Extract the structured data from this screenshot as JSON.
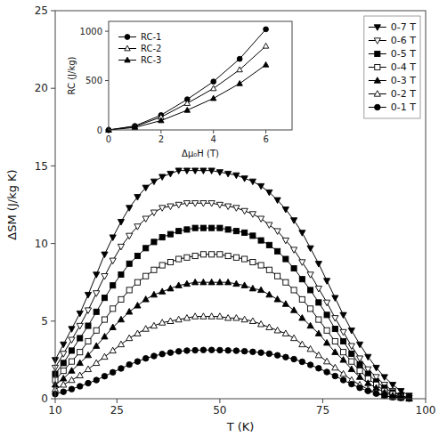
{
  "chart_data": [
    {
      "type": "line",
      "x_label": "T (K)",
      "y_label": "ΔSM (J/kg K)",
      "xlim": [
        10,
        100
      ],
      "ylim": [
        0,
        25
      ],
      "xticks": [
        10,
        25,
        50,
        75,
        100
      ],
      "yticks": [
        0,
        5,
        10,
        15,
        20,
        25
      ],
      "grid": false,
      "legend": "upper right",
      "color": "black",
      "x": [
        10,
        12,
        14,
        16,
        18,
        20,
        22,
        24,
        26,
        28,
        30,
        32,
        34,
        36,
        38,
        40,
        42,
        44,
        46,
        48,
        50,
        52,
        54,
        56,
        58,
        60,
        62,
        64,
        66,
        68,
        70,
        72,
        74,
        76,
        78,
        80,
        82,
        84,
        86,
        88,
        90,
        92,
        94,
        96
      ],
      "series": [
        {
          "name": "0-7 T",
          "marker": "triangle-down-filled",
          "values": [
            2.5,
            3.5,
            4.5,
            5.5,
            6.7,
            8.0,
            9.3,
            10.4,
            11.4,
            12.3,
            13.0,
            13.6,
            14.0,
            14.3,
            14.5,
            14.7,
            14.7,
            14.7,
            14.7,
            14.7,
            14.6,
            14.5,
            14.4,
            14.2,
            14.0,
            13.7,
            13.3,
            12.8,
            12.2,
            11.5,
            10.7,
            9.7,
            8.7,
            7.6,
            6.5,
            5.4,
            4.4,
            3.5,
            2.7,
            2.0,
            1.4,
            0.9,
            0.5,
            0.2
          ]
        },
        {
          "name": "0-6 T",
          "marker": "triangle-down-open",
          "values": [
            2.0,
            2.9,
            3.8,
            4.7,
            5.7,
            6.8,
            7.9,
            8.9,
            9.8,
            10.5,
            11.1,
            11.6,
            12.0,
            12.3,
            12.4,
            12.5,
            12.6,
            12.6,
            12.6,
            12.6,
            12.5,
            12.4,
            12.3,
            12.1,
            11.9,
            11.6,
            11.2,
            10.8,
            10.2,
            9.6,
            8.8,
            8.0,
            7.1,
            6.2,
            5.2,
            4.3,
            3.4,
            2.6,
            1.9,
            1.4,
            0.9,
            0.5,
            0.2,
            0.05
          ]
        },
        {
          "name": "0-5 T",
          "marker": "square-filled",
          "values": [
            1.6,
            2.3,
            3.1,
            3.9,
            4.7,
            5.6,
            6.5,
            7.3,
            8.0,
            8.7,
            9.2,
            9.7,
            10.1,
            10.4,
            10.6,
            10.8,
            10.9,
            11.0,
            11.0,
            11.0,
            11.0,
            10.9,
            10.8,
            10.7,
            10.5,
            10.2,
            9.9,
            9.5,
            9.0,
            8.4,
            7.7,
            7.0,
            6.2,
            5.4,
            4.5,
            3.7,
            2.9,
            2.2,
            1.6,
            1.1,
            0.7,
            0.4,
            0.2,
            0.05
          ]
        },
        {
          "name": "0-4 T",
          "marker": "square-open",
          "values": [
            1.2,
            1.8,
            2.4,
            3.0,
            3.7,
            4.4,
            5.1,
            5.8,
            6.4,
            7.0,
            7.5,
            7.9,
            8.3,
            8.6,
            8.8,
            9.0,
            9.1,
            9.2,
            9.3,
            9.3,
            9.3,
            9.2,
            9.1,
            9.0,
            8.8,
            8.6,
            8.3,
            7.9,
            7.5,
            7.0,
            6.4,
            5.8,
            5.1,
            4.4,
            3.7,
            3.0,
            2.4,
            1.8,
            1.3,
            0.9,
            0.5,
            0.3,
            0.1,
            0.02
          ]
        },
        {
          "name": "0-3 T",
          "marker": "triangle-up-filled",
          "values": [
            0.9,
            1.3,
            1.8,
            2.3,
            2.8,
            3.4,
            4.0,
            4.6,
            5.1,
            5.6,
            6.0,
            6.4,
            6.7,
            6.9,
            7.1,
            7.3,
            7.4,
            7.5,
            7.5,
            7.5,
            7.5,
            7.5,
            7.4,
            7.3,
            7.1,
            7.0,
            6.7,
            6.4,
            6.1,
            5.7,
            5.2,
            4.7,
            4.2,
            3.6,
            3.0,
            2.5,
            1.9,
            1.4,
            1.0,
            0.7,
            0.4,
            0.2,
            0.1,
            0.01
          ]
        },
        {
          "name": "0-2 T",
          "marker": "triangle-up-open",
          "values": [
            0.6,
            0.9,
            1.2,
            1.5,
            1.9,
            2.3,
            2.7,
            3.1,
            3.5,
            3.9,
            4.2,
            4.5,
            4.7,
            4.9,
            5.0,
            5.1,
            5.2,
            5.3,
            5.3,
            5.3,
            5.3,
            5.2,
            5.2,
            5.1,
            5.0,
            4.8,
            4.6,
            4.4,
            4.2,
            3.9,
            3.5,
            3.2,
            2.8,
            2.4,
            2.0,
            1.6,
            1.2,
            0.9,
            0.6,
            0.4,
            0.2,
            0.1,
            0.05,
            0.01
          ]
        },
        {
          "name": "0-1 T",
          "marker": "circle-filled",
          "values": [
            0.3,
            0.45,
            0.62,
            0.8,
            1.0,
            1.2,
            1.45,
            1.7,
            1.95,
            2.2,
            2.4,
            2.6,
            2.75,
            2.88,
            2.97,
            3.05,
            3.1,
            3.12,
            3.14,
            3.14,
            3.13,
            3.11,
            3.09,
            3.06,
            3.02,
            2.97,
            2.9,
            2.8,
            2.68,
            2.55,
            2.38,
            2.18,
            1.96,
            1.72,
            1.46,
            1.2,
            0.94,
            0.7,
            0.5,
            0.33,
            0.2,
            0.1,
            0.05,
            0.01
          ]
        }
      ]
    },
    {
      "type": "line",
      "x_label": "Δμ₀H (T)",
      "y_label": "RC (J/kg)",
      "xlim": [
        0,
        7
      ],
      "ylim": [
        0,
        1100
      ],
      "xticks": [
        0,
        2,
        4,
        6
      ],
      "yticks": [
        0,
        500,
        1000
      ],
      "grid": false,
      "legend": "upper left",
      "color": "black",
      "x": [
        0,
        1,
        2,
        3,
        4,
        5,
        6
      ],
      "series": [
        {
          "name": "RC-1",
          "marker": "circle-filled",
          "values": [
            0,
            40,
            150,
            310,
            490,
            720,
            1020
          ]
        },
        {
          "name": "RC-2",
          "marker": "triangle-up-open",
          "values": [
            0,
            35,
            130,
            270,
            420,
            610,
            850
          ]
        },
        {
          "name": "RC-3",
          "marker": "triangle-up-filled",
          "values": [
            0,
            25,
            95,
            200,
            320,
            470,
            660
          ]
        }
      ]
    }
  ]
}
